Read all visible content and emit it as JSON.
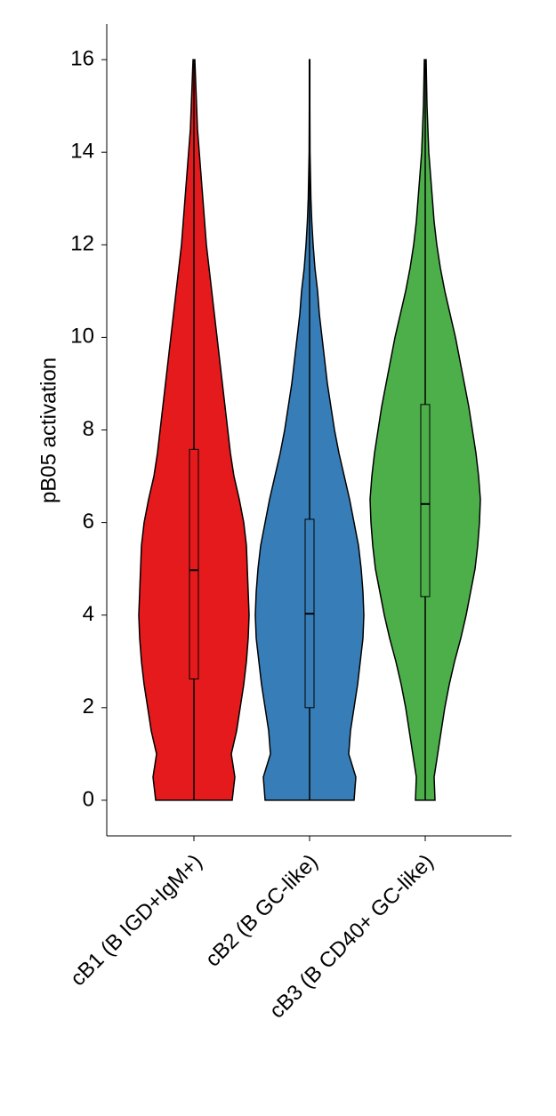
{
  "chart_data": {
    "type": "violin",
    "ylabel": "pB05 activation",
    "ylim": [
      -0.77,
      16.77
    ],
    "yticks": [
      0,
      2,
      4,
      6,
      8,
      10,
      12,
      14,
      16
    ],
    "categories": [
      "cB1 (B IGD+IgM+)",
      "cB2 (B GC-like)",
      "cB3 (B CD40+ GC-like)"
    ],
    "density_y": [
      0,
      0.5,
      1,
      1.5,
      2,
      2.5,
      3,
      3.5,
      4,
      4.5,
      5,
      5.5,
      6,
      6.5,
      7,
      7.5,
      8,
      8.5,
      9,
      9.5,
      10,
      10.5,
      11,
      11.5,
      12,
      12.5,
      13,
      13.5,
      14,
      14.5,
      15,
      15.5,
      16
    ],
    "series": [
      {
        "color": "#e41a1c",
        "min": 0,
        "q1": 2.62,
        "median": 4.97,
        "q3": 7.58,
        "max": 16,
        "density": [
          43,
          46,
          42,
          48,
          52,
          56,
          59,
          61,
          62,
          61,
          60,
          59,
          56,
          51,
          45,
          41,
          38,
          35,
          32,
          29,
          26,
          23,
          20,
          17,
          14,
          12,
          10,
          8,
          6,
          4,
          3,
          2,
          1
        ]
      },
      {
        "color": "#377eb8",
        "min": 0,
        "q1": 2.0,
        "median": 4.03,
        "q3": 6.07,
        "max": 16,
        "density": [
          50,
          52,
          44,
          46,
          50,
          54,
          57,
          60,
          61,
          60,
          58,
          55,
          50,
          45,
          39,
          33,
          28,
          24,
          20,
          17,
          14,
          11,
          9,
          6,
          4,
          2.5,
          1.5,
          1,
          0.5,
          0.4,
          0.3,
          0.3,
          0.3
        ]
      },
      {
        "color": "#4daf4a",
        "min": 0,
        "q1": 4.4,
        "median": 6.4,
        "q3": 8.55,
        "max": 16,
        "density": [
          11,
          10,
          14,
          18,
          22,
          27,
          33,
          40,
          46,
          51,
          56,
          59,
          61,
          62,
          60,
          57,
          53,
          49,
          44,
          39,
          34,
          28,
          22,
          17,
          13,
          10,
          8,
          6,
          4,
          3,
          2,
          1.5,
          1
        ]
      }
    ]
  }
}
